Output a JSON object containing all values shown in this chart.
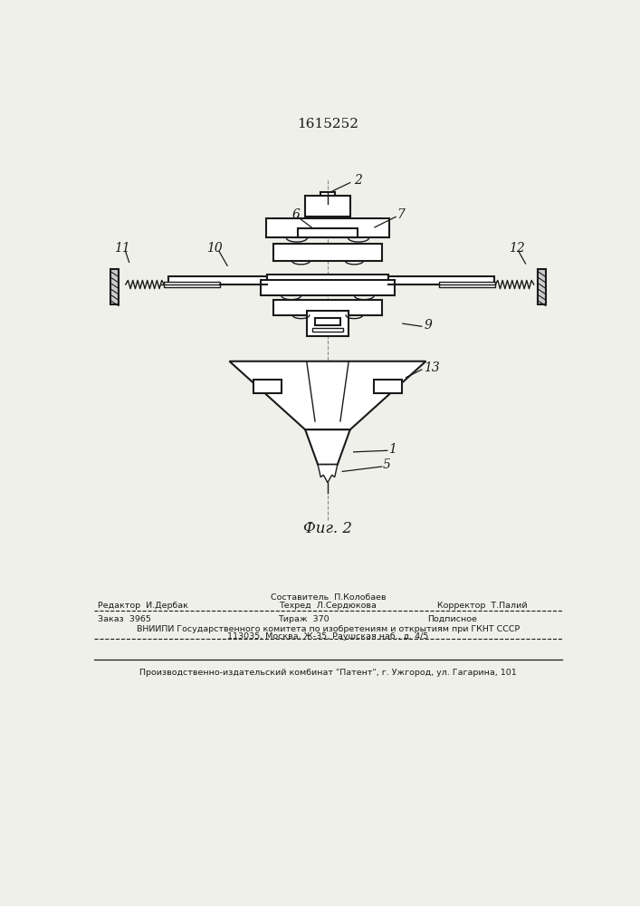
{
  "title_number": "1615252",
  "fig_label": "Фиг. 2",
  "bg_color": "#f0f0eb",
  "line_color": "#1a1a1a",
  "footer": {
    "line1_center_top": "Составитель  П.Колобаев",
    "line1_left": "Редактор  И.Дербак",
    "line1_center_bot": "Техред  Л.Сердюкова",
    "line1_right": "Корректор  Т.Палий",
    "line2_col1": "Заказ  3965",
    "line2_col2": "Тираж  370",
    "line2_col3": "Подписное",
    "line3": "ВНИИПИ Государственного комитета по изобретениям и открытиям при ГКНТ СССР",
    "line4": "113035, Москва, Ж-35, Раушская наб., д. 4/5",
    "line5": "Производственно-издательский комбинат \"Патент\", г. Ужгород, ул. Гагарина, 101"
  }
}
